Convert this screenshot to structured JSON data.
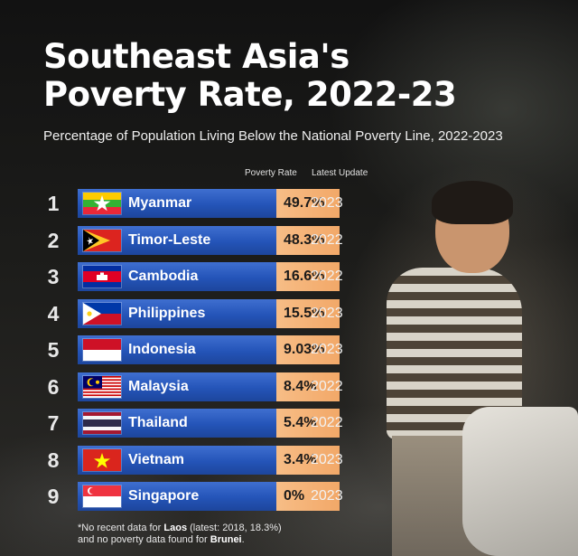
{
  "chart_data": {
    "type": "table",
    "title_lines": [
      "Southeast Asia's",
      "Poverty Rate, 2022-23"
    ],
    "subtitle": "Percentage of Population Living Below the National Poverty Line, 2022-2023",
    "columns": [
      "Poverty Rate",
      "Latest Update"
    ],
    "rows": [
      {
        "rank": "1",
        "country": "Myanmar",
        "rate": "49.7%",
        "value": 49.7,
        "update": "2023",
        "flag": "myanmar-flag-icon"
      },
      {
        "rank": "2",
        "country": "Timor-Leste",
        "rate": "48.3%",
        "value": 48.3,
        "update": "2022",
        "flag": "timor-leste-flag-icon"
      },
      {
        "rank": "3",
        "country": "Cambodia",
        "rate": "16.6%",
        "value": 16.6,
        "update": "2022",
        "flag": "cambodia-flag-icon"
      },
      {
        "rank": "4",
        "country": "Philippines",
        "rate": "15.5%",
        "value": 15.5,
        "update": "2023",
        "flag": "philippines-flag-icon"
      },
      {
        "rank": "5",
        "country": "Indonesia",
        "rate": "9.03%",
        "value": 9.03,
        "update": "2023",
        "flag": "indonesia-flag-icon"
      },
      {
        "rank": "6",
        "country": "Malaysia",
        "rate": "8.4%",
        "value": 8.4,
        "update": "2022",
        "flag": "malaysia-flag-icon"
      },
      {
        "rank": "7",
        "country": "Thailand",
        "rate": "5.4%",
        "value": 5.4,
        "update": "2022",
        "flag": "thailand-flag-icon"
      },
      {
        "rank": "8",
        "country": "Vietnam",
        "rate": "3.4%",
        "value": 3.4,
        "update": "2023",
        "flag": "vietnam-flag-icon"
      },
      {
        "rank": "9",
        "country": "Singapore",
        "rate": "0%",
        "value": 0,
        "update": "2023",
        "flag": "singapore-flag-icon"
      }
    ],
    "footnote": {
      "part1": "*No recent data for ",
      "laos": "Laos",
      "part2": " (latest: 2018, 18.3%)",
      "part3": "and no poverty data found for ",
      "brunei": "Brunei",
      "part4": "."
    },
    "colors": {
      "bar": "#2454b8",
      "rate_cell": "#f2a868",
      "background": "#141414"
    }
  }
}
